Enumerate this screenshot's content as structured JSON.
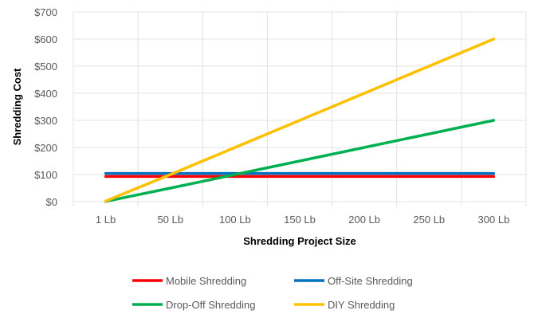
{
  "chart_data": {
    "type": "line",
    "title": "",
    "xlabel": "Shredding Project Size",
    "ylabel": "Shredding Cost",
    "categories": [
      "1 Lb",
      "50 Lb",
      "100 Lb",
      "150 Lb",
      "200 Lb",
      "250 Lb",
      "300 Lb"
    ],
    "ylim": [
      0,
      700
    ],
    "yticks": [
      0,
      100,
      200,
      300,
      400,
      500,
      600,
      700
    ],
    "ytick_labels": [
      "$0",
      "$100",
      "$200",
      "$300",
      "$400",
      "$500",
      "$600",
      "$700"
    ],
    "grid": true,
    "legend_position": "bottom",
    "series": [
      {
        "name": "Mobile Shredding",
        "color": "#ff0000",
        "values": [
          93,
          93,
          93,
          93,
          93,
          93,
          93
        ]
      },
      {
        "name": "Off-Site Shredding",
        "color": "#0070c0",
        "values": [
          104,
          104,
          104,
          104,
          104,
          104,
          104
        ]
      },
      {
        "name": "Drop-Off Shredding",
        "color": "#00b050",
        "values": [
          1,
          50,
          100,
          150,
          200,
          250,
          300
        ]
      },
      {
        "name": "DIY Shredding",
        "color": "#ffc000",
        "values": [
          2,
          100,
          200,
          300,
          400,
          500,
          600
        ]
      }
    ]
  }
}
